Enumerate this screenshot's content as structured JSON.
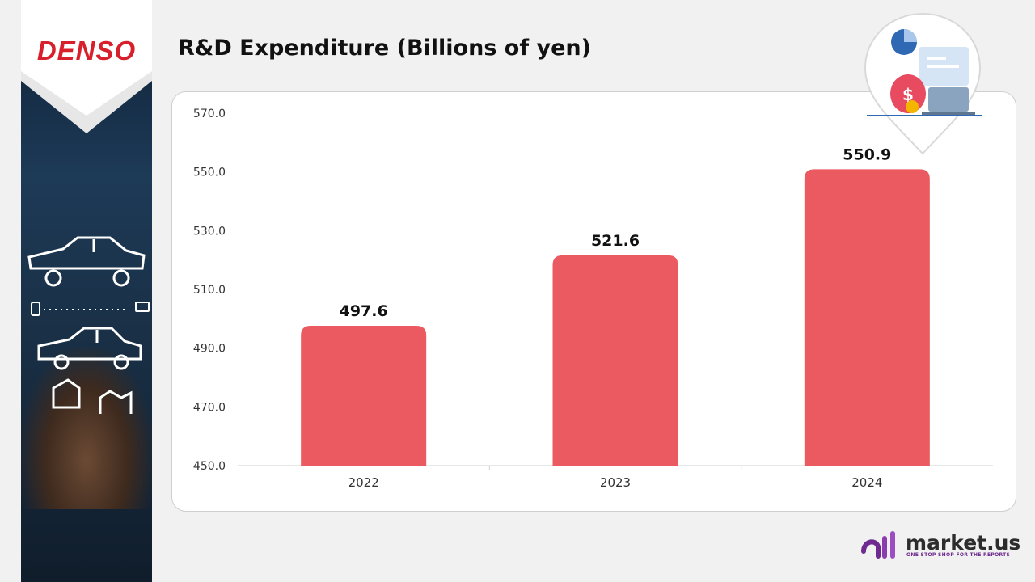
{
  "brand": {
    "logo": "DENSO",
    "site": "market.us",
    "tagline": "ONE STOP SHOP FOR THE REPORTS"
  },
  "title": "R&D Expenditure (Billions of yen)",
  "colors": {
    "bar": "#eb5a60",
    "logo_red": "#d7202b",
    "brand_purple": "#6e2a8e"
  },
  "chart_data": {
    "type": "bar",
    "title": "R&D Expenditure (Billions of yen)",
    "categories": [
      "2022",
      "2023",
      "2024"
    ],
    "values": [
      497.6,
      521.6,
      550.9
    ],
    "value_labels": [
      "497.6",
      "521.6",
      "550.9"
    ],
    "ylim": [
      450,
      570
    ],
    "yticks": [
      "450.0",
      "470.0",
      "490.0",
      "510.0",
      "530.0",
      "550.0",
      "570.0"
    ],
    "xlabel": "",
    "ylabel": "",
    "grid": false,
    "legend": "none"
  }
}
